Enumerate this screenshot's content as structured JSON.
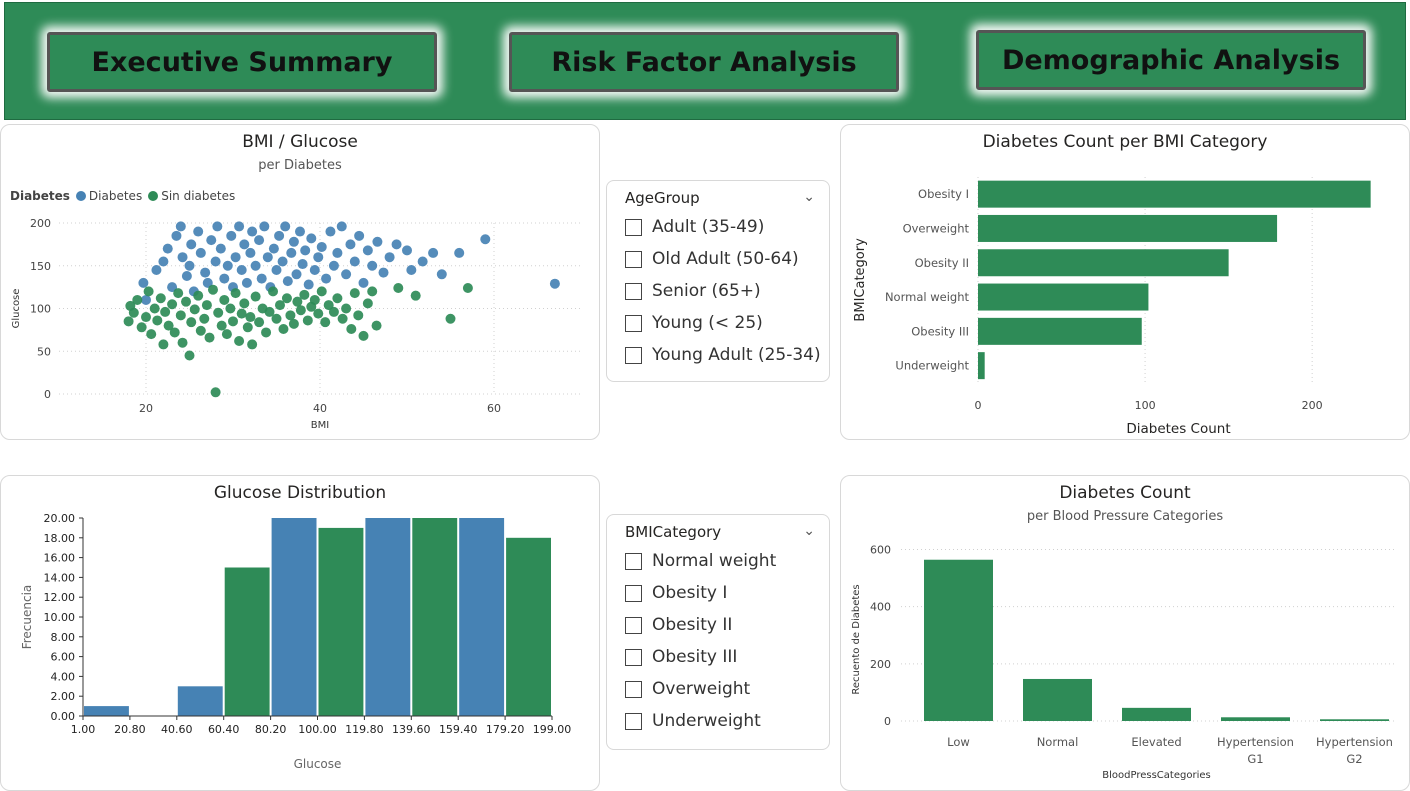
{
  "nav": {
    "buttons": [
      "Executive Summary",
      "Risk Factor Analysis",
      "Demographic Analysis"
    ]
  },
  "colors": {
    "green": "#2e8b57",
    "blue": "#4682b4"
  },
  "scatter": {
    "title": "BMI / Glucose",
    "subtitle": "per Diabetes",
    "legend_title": "Diabetes",
    "legend": [
      "Diabetes",
      "Sin diabetes"
    ]
  },
  "slicers": {
    "age": {
      "title": "AgeGroup",
      "items": [
        "Adult (35-49)",
        "Old Adult (50-64)",
        "Senior (65+)",
        "Young (< 25)",
        "Young Adult (25-34)"
      ]
    },
    "bmi": {
      "title": "BMICategory",
      "items": [
        "Normal weight",
        "Obesity I",
        "Obesity II",
        "Obesity III",
        "Overweight",
        "Underweight"
      ]
    }
  },
  "bmi_bars": {
    "title": "Diabetes Count per BMI Category"
  },
  "histogram": {
    "title": "Glucose Distribution"
  },
  "bp_bars": {
    "title": "Diabetes Count",
    "subtitle": "per Blood Pressure Categories"
  },
  "chart_data": [
    {
      "id": "scatter",
      "type": "scatter",
      "title": "BMI / Glucose",
      "subtitle": "per Diabetes",
      "xlabel": "BMI",
      "ylabel": "Glucose",
      "xlim": [
        10,
        70
      ],
      "ylim": [
        0,
        200
      ],
      "xticks": [
        20,
        40,
        60
      ],
      "yticks": [
        0,
        50,
        100,
        150,
        200
      ],
      "series": [
        {
          "name": "Diabetes",
          "color": "#4682b4",
          "points": [
            [
              19.7,
              130
            ],
            [
              20,
              110
            ],
            [
              21.2,
              145
            ],
            [
              22,
              155
            ],
            [
              22.5,
              170
            ],
            [
              23,
              125
            ],
            [
              23.5,
              185
            ],
            [
              24,
              196
            ],
            [
              24.2,
              160
            ],
            [
              24.7,
              138
            ],
            [
              25,
              150
            ],
            [
              25.2,
              175
            ],
            [
              25.5,
              120
            ],
            [
              26,
              190
            ],
            [
              26.3,
              165
            ],
            [
              26.8,
              142
            ],
            [
              27.1,
              130
            ],
            [
              27.5,
              180
            ],
            [
              28,
              155
            ],
            [
              28.2,
              196
            ],
            [
              28.6,
              170
            ],
            [
              29,
              135
            ],
            [
              29.4,
              150
            ],
            [
              29.8,
              185
            ],
            [
              30,
              125
            ],
            [
              30.3,
              160
            ],
            [
              30.7,
              196
            ],
            [
              31,
              145
            ],
            [
              31.3,
              175
            ],
            [
              31.6,
              130
            ],
            [
              32,
              165
            ],
            [
              32.2,
              190
            ],
            [
              32.6,
              150
            ],
            [
              33,
              180
            ],
            [
              33.3,
              135
            ],
            [
              33.6,
              196
            ],
            [
              34,
              160
            ],
            [
              34.3,
              125
            ],
            [
              34.7,
              170
            ],
            [
              35,
              145
            ],
            [
              35.3,
              185
            ],
            [
              35.7,
              155
            ],
            [
              36,
              196
            ],
            [
              36.3,
              132
            ],
            [
              36.7,
              165
            ],
            [
              37,
              178
            ],
            [
              37.3,
              140
            ],
            [
              37.7,
              190
            ],
            [
              38,
              152
            ],
            [
              38.3,
              168
            ],
            [
              38.7,
              128
            ],
            [
              39,
              182
            ],
            [
              39.4,
              145
            ],
            [
              39.8,
              160
            ],
            [
              40.2,
              172
            ],
            [
              40.7,
              135
            ],
            [
              41.2,
              190
            ],
            [
              41.6,
              150
            ],
            [
              42,
              165
            ],
            [
              42.5,
              196
            ],
            [
              43,
              140
            ],
            [
              43.5,
              175
            ],
            [
              44,
              155
            ],
            [
              44.5,
              185
            ],
            [
              45,
              130
            ],
            [
              45.5,
              168
            ],
            [
              46,
              150
            ],
            [
              46.6,
              178
            ],
            [
              47.3,
              142
            ],
            [
              48,
              160
            ],
            [
              48.8,
              175
            ],
            [
              50,
              168
            ],
            [
              50.5,
              145
            ],
            [
              51.8,
              155
            ],
            [
              53,
              165
            ],
            [
              54,
              140
            ],
            [
              56,
              165
            ],
            [
              59,
              181
            ],
            [
              67,
              129
            ]
          ]
        },
        {
          "name": "Sin diabetes",
          "color": "#2e8b57",
          "points": [
            [
              18,
              85
            ],
            [
              18.2,
              103
            ],
            [
              18.6,
              95
            ],
            [
              19,
              110
            ],
            [
              19.5,
              78
            ],
            [
              20,
              90
            ],
            [
              20.3,
              120
            ],
            [
              20.6,
              70
            ],
            [
              21,
              100
            ],
            [
              21.3,
              86
            ],
            [
              21.7,
              112
            ],
            [
              22,
              58
            ],
            [
              22.2,
              96
            ],
            [
              22.6,
              80
            ],
            [
              23,
              105
            ],
            [
              23.3,
              72
            ],
            [
              23.7,
              118
            ],
            [
              24,
              92
            ],
            [
              24.2,
              60
            ],
            [
              24.6,
              108
            ],
            [
              25,
              45
            ],
            [
              25.2,
              84
            ],
            [
              25.6,
              99
            ],
            [
              26,
              115
            ],
            [
              26.3,
              74
            ],
            [
              26.7,
              88
            ],
            [
              27,
              104
            ],
            [
              27.3,
              66
            ],
            [
              27.7,
              122
            ],
            [
              28,
              2
            ],
            [
              28.3,
              95
            ],
            [
              28.7,
              80
            ],
            [
              29,
              110
            ],
            [
              29.3,
              70
            ],
            [
              29.7,
              100
            ],
            [
              30,
              85
            ],
            [
              30.3,
              118
            ],
            [
              30.7,
              62
            ],
            [
              31,
              94
            ],
            [
              31.3,
              106
            ],
            [
              31.7,
              78
            ],
            [
              32,
              90
            ],
            [
              32.2,
              58
            ],
            [
              32.6,
              114
            ],
            [
              33,
              84
            ],
            [
              33.4,
              100
            ],
            [
              33.8,
              72
            ],
            [
              34.2,
              96
            ],
            [
              34.6,
              120
            ],
            [
              35,
              88
            ],
            [
              35.4,
              104
            ],
            [
              35.8,
              76
            ],
            [
              36.2,
              112
            ],
            [
              36.6,
              92
            ],
            [
              37,
              82
            ],
            [
              37.4,
              108
            ],
            [
              37.8,
              98
            ],
            [
              38.2,
              116
            ],
            [
              38.6,
              86
            ],
            [
              39,
              102
            ],
            [
              39.4,
              110
            ],
            [
              39.8,
              94
            ],
            [
              40.2,
              120
            ],
            [
              40.6,
              84
            ],
            [
              41,
              104
            ],
            [
              41.6,
              96
            ],
            [
              42,
              112
            ],
            [
              42.6,
              88
            ],
            [
              43,
              100
            ],
            [
              43.6,
              76
            ],
            [
              44,
              118
            ],
            [
              44.4,
              92
            ],
            [
              45,
              68
            ],
            [
              45.5,
              106
            ],
            [
              46,
              120
            ],
            [
              46.5,
              80
            ],
            [
              49,
              124
            ],
            [
              51,
              115
            ],
            [
              55,
              88
            ],
            [
              57,
              124
            ]
          ]
        }
      ]
    },
    {
      "id": "bmi_bars",
      "type": "bar",
      "orientation": "horizontal",
      "title": "Diabetes Count per BMI Category",
      "xlabel": "Diabetes Count",
      "ylabel": "BMICategory",
      "categories": [
        "Obesity I",
        "Overweight",
        "Obesity II",
        "Normal weight",
        "Obesity III",
        "Underweight"
      ],
      "values": [
        235,
        179,
        150,
        102,
        98,
        4
      ],
      "xlim": [
        0,
        240
      ],
      "xticks": [
        0,
        100,
        200
      ],
      "color": "#2e8b57"
    },
    {
      "id": "histogram",
      "type": "bar",
      "title": "Glucose Distribution",
      "xlabel": "Glucose",
      "ylabel": "Frecuencia",
      "bin_edges": [
        1.0,
        20.8,
        40.6,
        60.4,
        80.2,
        100.0,
        119.8,
        139.6,
        159.4,
        179.2,
        199.0
      ],
      "bin_edge_labels": [
        "1.00",
        "20.80",
        "40.60",
        "60.40",
        "80.20",
        "100.00",
        "119.80",
        "139.60",
        "159.40",
        "179.20",
        "199.00"
      ],
      "values": [
        1,
        0,
        3,
        15,
        20,
        19,
        20,
        20,
        20,
        18
      ],
      "colors": [
        "#4682b4",
        "#4682b4",
        "#4682b4",
        "#2e8b57",
        "#4682b4",
        "#2e8b57",
        "#4682b4",
        "#2e8b57",
        "#4682b4",
        "#2e8b57"
      ],
      "ylim": [
        0,
        20
      ],
      "yticks": [
        "0.00",
        "2.00",
        "4.00",
        "6.00",
        "8.00",
        "10.00",
        "12.00",
        "14.00",
        "16.00",
        "18.00",
        "20.00"
      ]
    },
    {
      "id": "bp_bars",
      "type": "bar",
      "title": "Diabetes Count",
      "subtitle": "per Blood Pressure Categories",
      "xlabel": "BloodPressCategories",
      "ylabel": "Recuento de Diabetes",
      "categories": [
        "Low",
        "Normal",
        "Elevated",
        "Hypertension G1",
        "Hypertension G2"
      ],
      "category_lines": [
        [
          "Low"
        ],
        [
          "Normal"
        ],
        [
          "Elevated"
        ],
        [
          "Hypertension",
          "G1"
        ],
        [
          "Hypertension",
          "G2"
        ]
      ],
      "values": [
        564,
        147,
        46,
        13,
        6
      ],
      "ylim": [
        0,
        640
      ],
      "yticks": [
        0,
        200,
        400,
        600
      ],
      "color": "#2e8b57"
    }
  ]
}
